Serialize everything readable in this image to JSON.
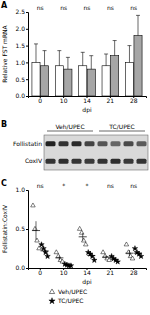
{
  "chart_data": [
    {
      "type": "bar",
      "panel": "A",
      "y_label": "Relative FST mRNA",
      "x_label": "dpi",
      "categories": [
        "0",
        "10",
        "14",
        "21",
        "28"
      ],
      "series": [
        {
          "name": "Veh/UPEC",
          "color": "#ffffff",
          "values": [
            1.0,
            0.9,
            0.9,
            0.9,
            1.0
          ],
          "errors": [
            0.55,
            0.45,
            0.4,
            0.35,
            0.5
          ]
        },
        {
          "name": "TC/UPEC",
          "color": "#a6a6a6",
          "values": [
            0.9,
            0.8,
            0.8,
            1.2,
            1.8
          ],
          "errors": [
            0.45,
            0.35,
            0.4,
            0.45,
            0.6
          ]
        }
      ],
      "annotations": [
        "ns",
        "ns",
        "ns",
        "ns",
        "ns"
      ],
      "ylim": [
        0,
        2.5
      ],
      "yticks": [
        {
          "value": 0,
          "label": "0.0"
        },
        {
          "value": 0.5,
          "label": "0.5"
        },
        {
          "value": 1,
          "label": "1.0"
        },
        {
          "value": 1.5,
          "label": "1.5"
        },
        {
          "value": 2,
          "label": "2.0"
        },
        {
          "value": 2.5,
          "label": "2.5"
        }
      ]
    },
    {
      "type": "scatter",
      "panel": "C",
      "y_label": "Follistatin:CoxIV",
      "x_label": "dpi",
      "categories": [
        "0",
        "10",
        "14",
        "21",
        "28"
      ],
      "series": [
        {
          "name": "Veh/UPEC",
          "color": "#ffffff",
          "marker": "triangle",
          "values": [
            [
              0.8,
              0.5,
              0.35,
              0.25
            ],
            [
              0.2,
              0.15,
              0.1,
              0.08
            ],
            [
              0.5,
              0.45,
              0.35,
              0.3
            ],
            [
              0.2,
              0.15,
              0.12,
              0.1
            ],
            [
              0.3,
              0.2,
              0.15,
              0.12
            ]
          ],
          "means": [
            0.48,
            0.13,
            0.4,
            0.14,
            0.19
          ],
          "errors": [
            0.12,
            0.03,
            0.05,
            0.02,
            0.04
          ]
        },
        {
          "name": "TC/UPEC",
          "color": "#000000",
          "marker": "star",
          "values": [
            [
              0.3,
              0.25,
              0.2,
              0.15
            ],
            [
              0.05,
              0.04,
              0.03,
              0.03
            ],
            [
              0.2,
              0.18,
              0.15,
              0.1
            ],
            [
              0.15,
              0.12,
              0.1,
              0.08
            ],
            [
              0.25,
              0.2,
              0.18,
              0.15
            ]
          ],
          "means": [
            0.22,
            0.04,
            0.16,
            0.11,
            0.19
          ],
          "errors": [
            0.03,
            0.01,
            0.02,
            0.02,
            0.02
          ]
        }
      ],
      "annotations": [
        "ns",
        "*",
        "*",
        "ns",
        "ns"
      ],
      "legend": "bottom",
      "ylim": [
        0,
        1
      ],
      "yticks": [
        {
          "value": 0,
          "label": "0.0"
        },
        {
          "value": 0.5,
          "label": "0.5"
        },
        {
          "value": 1,
          "label": "1.0"
        }
      ]
    }
  ],
  "blot": {
    "panel": "B",
    "groups": [
      "Veh/UPEC",
      "TC/UPEC"
    ],
    "rows": [
      "Follistatin",
      "CoxIV"
    ]
  }
}
